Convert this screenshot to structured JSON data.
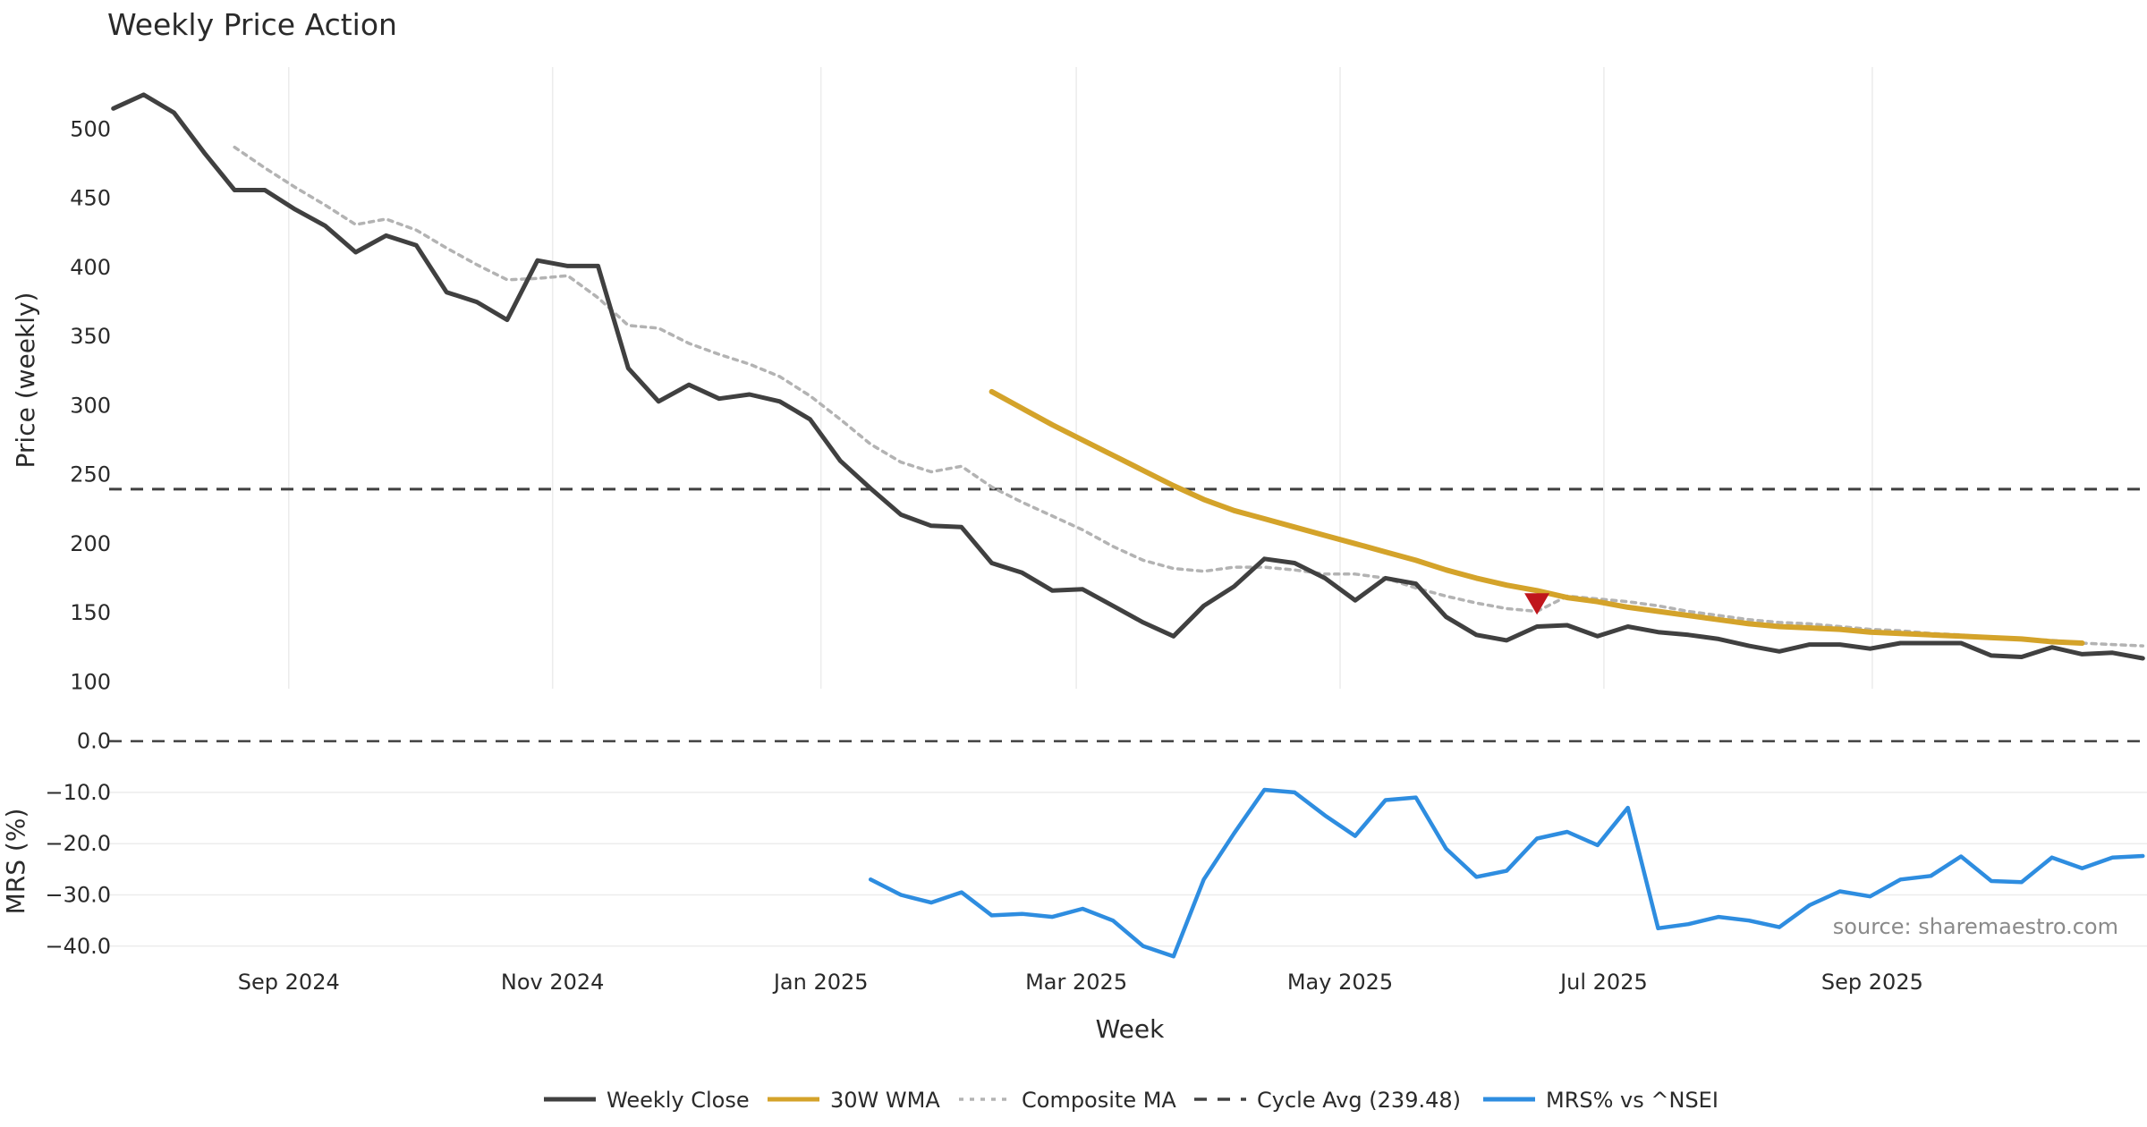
{
  "chart_data": {
    "type": "line",
    "title": "Weekly Price Action",
    "xlabel": "Week",
    "source": "source: sharemaestro.com",
    "x_ticks": [
      {
        "label": "Sep 2024",
        "week": 5.79
      },
      {
        "label": "Nov 2024",
        "week": 14.5
      },
      {
        "label": "Jan 2025",
        "week": 23.36
      },
      {
        "label": "Mar 2025",
        "week": 31.79
      },
      {
        "label": "May 2025",
        "week": 40.5
      },
      {
        "label": "Jul 2025",
        "week": 49.21
      },
      {
        "label": "Sep 2025",
        "week": 58.07
      }
    ],
    "x_range": [
      -0.14,
      67.14
    ],
    "price_panel": {
      "ylabel": "Price (weekly)",
      "ylim": [
        95,
        545
      ],
      "yticks": [
        100,
        150,
        200,
        250,
        300,
        350,
        400,
        450,
        500
      ],
      "series": [
        {
          "name": "Weekly Close",
          "color": "#404040",
          "style": "solid",
          "start_week": 0,
          "values": [
            515,
            525,
            512,
            483,
            456,
            456,
            442,
            430,
            411,
            423,
            416,
            382,
            375,
            362,
            405,
            401,
            401,
            327,
            303,
            315,
            305,
            308,
            303,
            290,
            260,
            240,
            221,
            213,
            212,
            186,
            179,
            166,
            167,
            155,
            143,
            133,
            155,
            169,
            189,
            186,
            175,
            159,
            175,
            171,
            147,
            134,
            130,
            140,
            141,
            133,
            140,
            136,
            134,
            131,
            126,
            122,
            127,
            127,
            124,
            128,
            128,
            128,
            119,
            118,
            125,
            120,
            121,
            117
          ]
        },
        {
          "name": "30W WMA",
          "color": "#d4a32a",
          "style": "solid",
          "start_week": 29,
          "values": [
            310,
            298,
            286,
            275,
            264,
            253,
            242,
            232,
            224,
            218,
            212,
            206,
            200,
            194,
            188,
            181,
            175,
            170,
            166,
            161,
            158,
            154,
            151,
            148,
            145,
            142,
            140,
            139,
            138,
            136,
            135,
            134,
            133,
            132,
            131,
            129,
            128
          ]
        },
        {
          "name": "Composite MA",
          "color": "#b3b3b3",
          "style": "dotted",
          "start_week": 4,
          "values": [
            487,
            472,
            458,
            445,
            431,
            435,
            427,
            414,
            402,
            391,
            392,
            394,
            378,
            358,
            356,
            345,
            337,
            330,
            321,
            307,
            290,
            272,
            259,
            252,
            256,
            241,
            230,
            220,
            210,
            198,
            188,
            182,
            180,
            183,
            183,
            181,
            178,
            178,
            175,
            168,
            162,
            157,
            153,
            151,
            162,
            160,
            158,
            155,
            151,
            148,
            145,
            143,
            142,
            140,
            138,
            137,
            135,
            134,
            132,
            131,
            130,
            128,
            127,
            126
          ]
        }
      ],
      "cycle_avg": {
        "name": "Cycle Avg (239.48)",
        "value": 239.48,
        "color": "#404040",
        "style": "dashed"
      },
      "marker": {
        "week": 47,
        "value": 157,
        "color": "#c0161c",
        "shape": "down-triangle"
      }
    },
    "mrs_panel": {
      "ylabel": "MRS (%)",
      "ylim": [
        -43,
        1.5
      ],
      "yticks": [
        0.0,
        -10.0,
        -20.0,
        -30.0,
        -40.0
      ],
      "ytick_labels": [
        "0.0",
        "−10.0",
        "−20.0",
        "−30.0",
        "−40.0"
      ],
      "zero_line": {
        "value": 0,
        "color": "#404040",
        "style": "dashed"
      },
      "series": [
        {
          "name": "MRS% vs ^NSEI",
          "color": "#2e8de0",
          "style": "solid",
          "start_week": 25,
          "values": [
            -27,
            -30,
            -31.5,
            -29.5,
            -34,
            -33.7,
            -34.3,
            -32.7,
            -35,
            -40,
            -42,
            -27,
            -18,
            -9.5,
            -10,
            -14.5,
            -18.5,
            -11.5,
            -11,
            -21,
            -26.5,
            -25.3,
            -19,
            -17.7,
            -20.3,
            -13,
            -36.5,
            -35.7,
            -34.3,
            -35,
            -36.3,
            -32,
            -29.3,
            -30.3,
            -27,
            -26.3,
            -22.5,
            -27.3,
            -27.5,
            -22.7,
            -24.8,
            -22.7,
            -22.4
          ]
        }
      ]
    },
    "legend": {
      "placement": "bottom-center",
      "entries": [
        {
          "label": "Weekly Close",
          "color": "#404040",
          "style": "solid"
        },
        {
          "label": "30W WMA",
          "color": "#d4a32a",
          "style": "solid"
        },
        {
          "label": "Composite MA",
          "color": "#b3b3b3",
          "style": "dotted"
        },
        {
          "label": "Cycle Avg (239.48)",
          "color": "#404040",
          "style": "dashed"
        },
        {
          "label": "MRS% vs ^NSEI",
          "color": "#2e8de0",
          "style": "solid"
        }
      ]
    }
  }
}
